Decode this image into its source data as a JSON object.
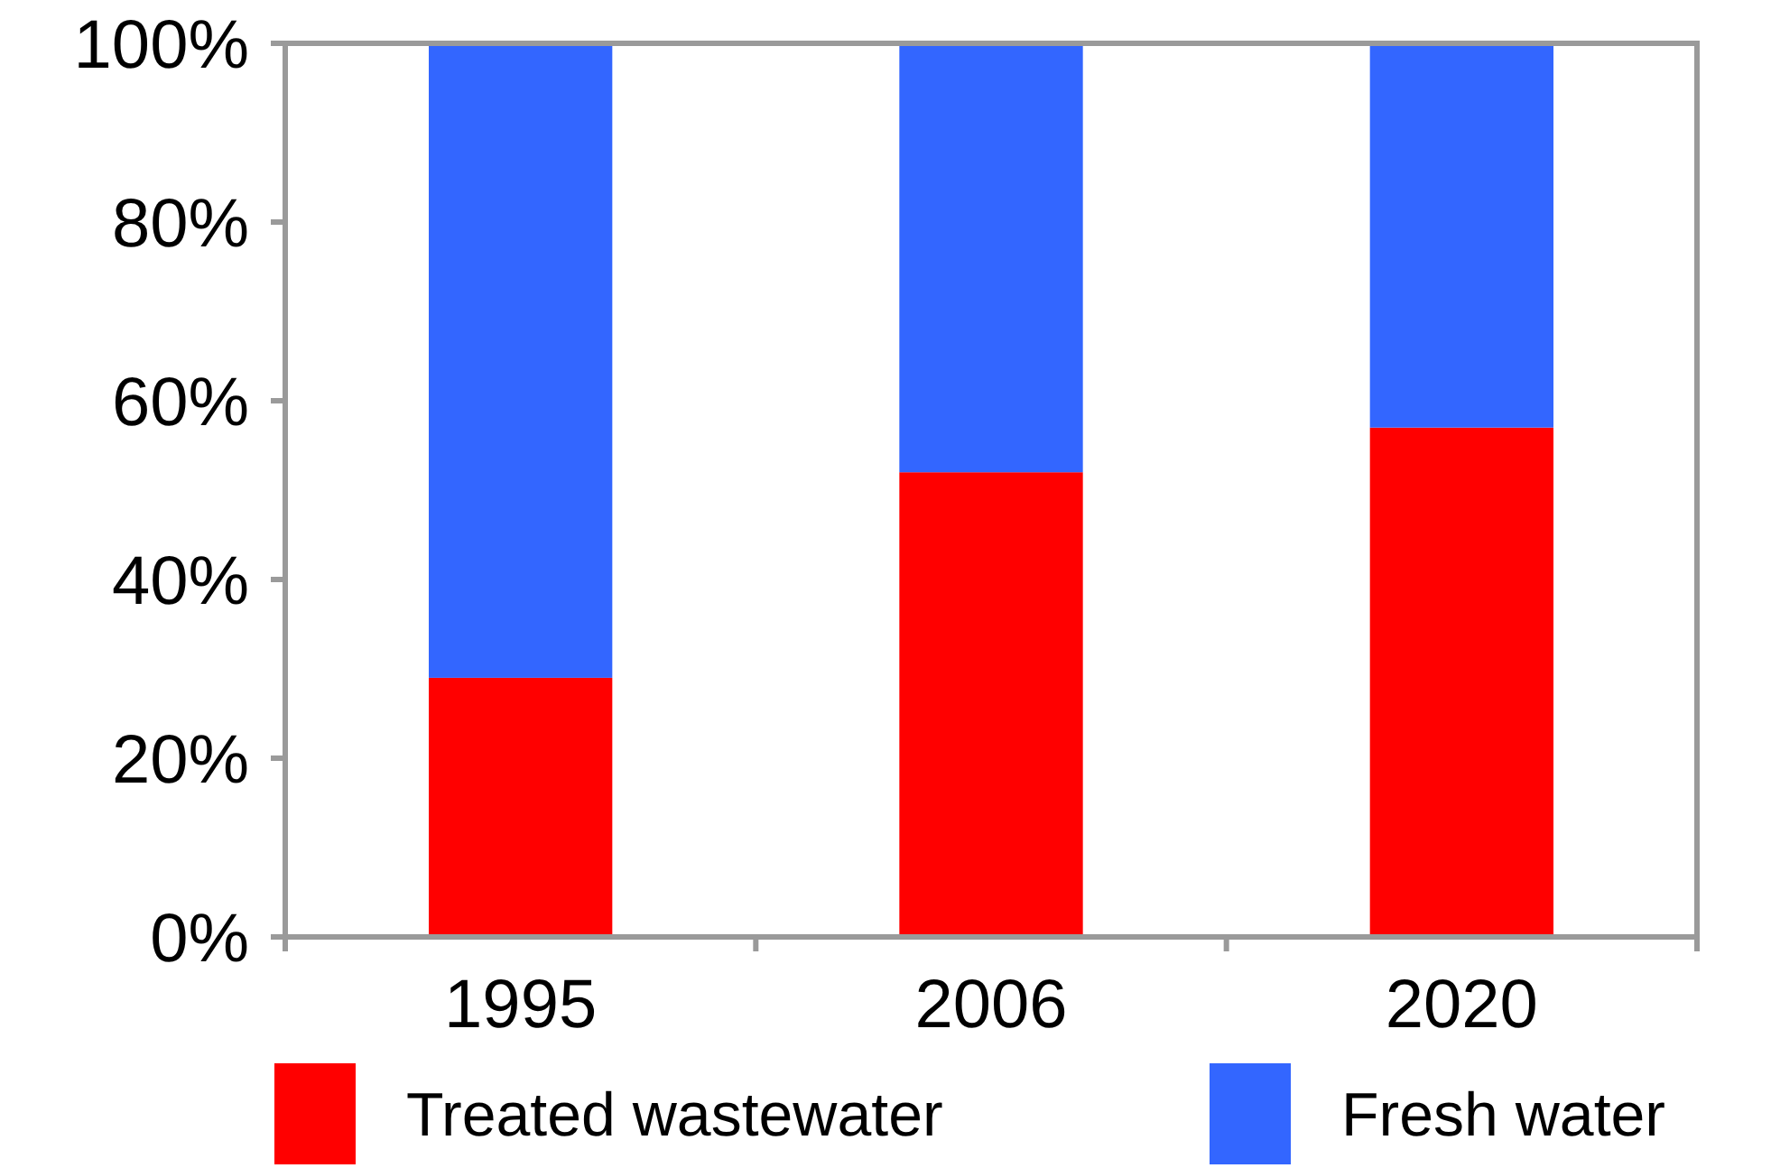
{
  "chart_data": {
    "type": "bar",
    "stacked": true,
    "categories": [
      "1995",
      "2006",
      "2020"
    ],
    "series": [
      {
        "name": "Treated wastewater",
        "color": "#ff0000",
        "values": [
          29,
          52,
          57
        ]
      },
      {
        "name": "Fresh water",
        "color": "#3366ff",
        "values": [
          71,
          48,
          43
        ]
      }
    ],
    "ylim": [
      0,
      100
    ],
    "yticks": [
      {
        "value": 0,
        "label": "0%"
      },
      {
        "value": 20,
        "label": "20%"
      },
      {
        "value": 40,
        "label": "40%"
      },
      {
        "value": 60,
        "label": "60%"
      },
      {
        "value": 80,
        "label": "80%"
      },
      {
        "value": 100,
        "label": "100%"
      }
    ],
    "grid": false,
    "legend": "bottom"
  }
}
